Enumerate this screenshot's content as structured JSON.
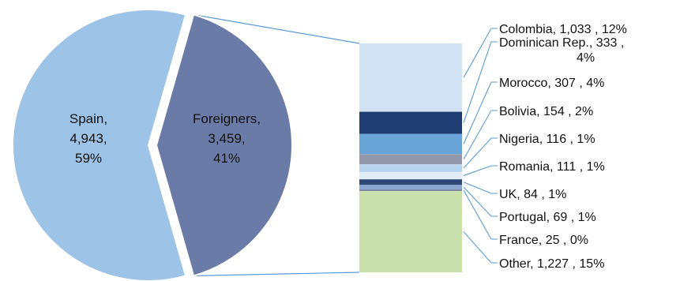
{
  "chart_data": [
    {
      "type": "pie",
      "slices": [
        {
          "label_lines": [
            "Spain,",
            "4,943,",
            "59%"
          ],
          "category": "Spain",
          "value": 4943,
          "percent": "59%",
          "color": "#9dc3e6"
        },
        {
          "label_lines": [
            "Foreigners,",
            "3,459,",
            "41%"
          ],
          "category": "Foreigners",
          "value": 3459,
          "percent": "41%",
          "color": "#6a7ba8"
        }
      ]
    },
    {
      "type": "bar",
      "stacked": true,
      "segments": [
        {
          "category": "Colombia",
          "value": 1033,
          "percent": "12%",
          "label_lines": [
            "Colombia,  1,033 , 12%"
          ],
          "color": "#d2e4f3"
        },
        {
          "category": "Dominican Rep.",
          "value": 333,
          "percent": "4%",
          "label_lines": [
            "Dominican Rep.,  333 ,",
            "4%"
          ],
          "color": "#1f3d73"
        },
        {
          "category": "Morocco",
          "value": 307,
          "percent": "4%",
          "label_lines": [
            "Morocco,  307 , 4%"
          ],
          "color": "#6aa4d9"
        },
        {
          "category": "Bolivia",
          "value": 154,
          "percent": "2%",
          "label_lines": [
            "Bolivia,  154 , 2%"
          ],
          "color": "#9399ab"
        },
        {
          "category": "Nigeria",
          "value": 116,
          "percent": "1%",
          "label_lines": [
            "Nigeria,  116 , 1%"
          ],
          "color": "#b7d3ee"
        },
        {
          "category": "Romania",
          "value": 111,
          "percent": "1%",
          "label_lines": [
            "Romania,  111 , 1%"
          ],
          "color": "#e1ecf7"
        },
        {
          "category": "UK",
          "value": 84,
          "percent": "1%",
          "label_lines": [
            "UK,  84 , 1%"
          ],
          "color": "#2c4776"
        },
        {
          "category": "Portugal",
          "value": 69,
          "percent": "1%",
          "label_lines": [
            "Portugal,  69 , 1%"
          ],
          "color": "#8aa6d0"
        },
        {
          "category": "France",
          "value": 25,
          "percent": "0%",
          "label_lines": [
            "France,  25 , 0%"
          ],
          "color": "#7f86a0"
        },
        {
          "category": "Other",
          "value": 1227,
          "percent": "15%",
          "label_lines": [
            "Other,  1,227 , 15%"
          ],
          "color": "#c9e0ad"
        }
      ]
    }
  ],
  "colors": {
    "connector": "#5b9bd5",
    "pie_border": "#ffffff",
    "text": "#111111"
  }
}
